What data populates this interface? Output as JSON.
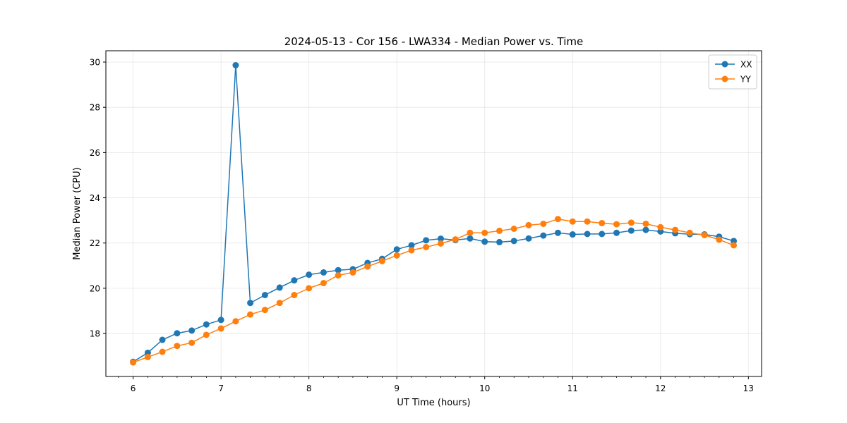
{
  "chart_data": {
    "type": "line",
    "title": "2024-05-13 - Cor 156 - LWA334 - Median Power vs. Time",
    "xlabel": "UT Time (hours)",
    "ylabel": "Median Power (CPU)",
    "xlim": [
      5.69,
      13.15
    ],
    "ylim": [
      16.1,
      30.5
    ],
    "xticks": [
      6,
      7,
      8,
      9,
      10,
      11,
      12,
      13
    ],
    "yticks": [
      18,
      20,
      22,
      24,
      26,
      28,
      30
    ],
    "grid": true,
    "legend_position": "top-right",
    "x": [
      6.0,
      6.167,
      6.333,
      6.5,
      6.667,
      6.833,
      7.0,
      7.167,
      7.333,
      7.5,
      7.667,
      7.833,
      8.0,
      8.167,
      8.333,
      8.5,
      8.667,
      8.833,
      9.0,
      9.167,
      9.333,
      9.5,
      9.667,
      9.833,
      10.0,
      10.167,
      10.333,
      10.5,
      10.667,
      10.833,
      11.0,
      11.167,
      11.333,
      11.5,
      11.667,
      11.833,
      12.0,
      12.167,
      12.333,
      12.5,
      12.667,
      12.833
    ],
    "series": [
      {
        "name": "XX",
        "color": "#1f77b4",
        "values": [
          16.75,
          17.15,
          17.72,
          18.01,
          18.13,
          18.4,
          18.6,
          29.86,
          19.35,
          19.7,
          20.03,
          20.35,
          20.6,
          20.7,
          20.8,
          20.84,
          21.12,
          21.3,
          21.72,
          21.9,
          22.12,
          22.19,
          22.13,
          22.2,
          22.06,
          22.04,
          22.09,
          22.2,
          22.33,
          22.45,
          22.38,
          22.4,
          22.4,
          22.45,
          22.55,
          22.58,
          22.51,
          22.43,
          22.39,
          22.38,
          22.28,
          22.09
        ],
        "marker": "circle"
      },
      {
        "name": "YY",
        "color": "#ff7f0e",
        "values": [
          16.72,
          16.96,
          17.19,
          17.45,
          17.59,
          17.94,
          18.22,
          18.54,
          18.84,
          19.04,
          19.35,
          19.7,
          20.0,
          20.23,
          20.57,
          20.7,
          20.96,
          21.2,
          21.45,
          21.68,
          21.82,
          21.98,
          22.16,
          22.45,
          22.45,
          22.54,
          22.63,
          22.79,
          22.85,
          23.06,
          22.95,
          22.95,
          22.88,
          22.83,
          22.9,
          22.85,
          22.7,
          22.58,
          22.45,
          22.35,
          22.15,
          21.9
        ],
        "marker": "circle"
      }
    ]
  }
}
